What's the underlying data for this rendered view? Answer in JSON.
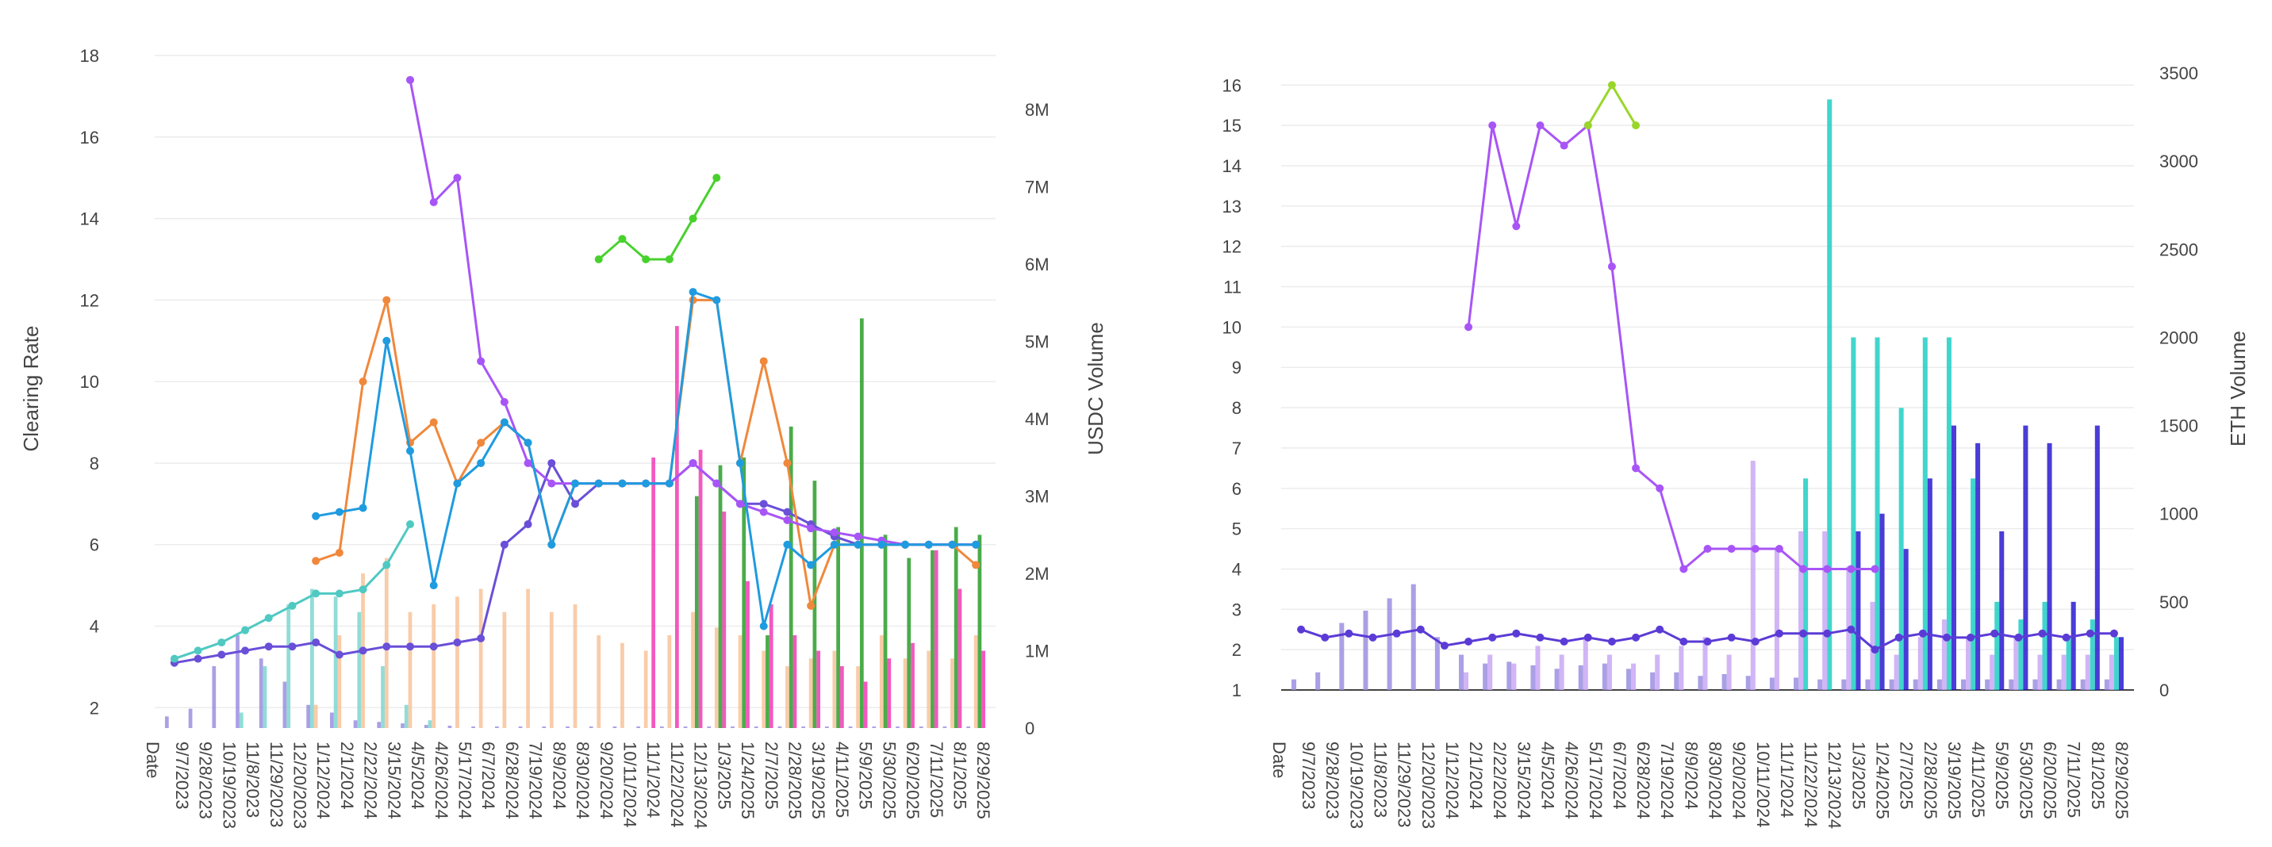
{
  "chart_data": [
    {
      "type": "bar+line",
      "left_axis_title": "Clearing Rate",
      "right_axis_title": "USDC Volume",
      "ylim": [
        1.5,
        18
      ],
      "y2lim": [
        0,
        8700000
      ],
      "yticks": [
        "2",
        "4",
        "6",
        "8",
        "10",
        "12",
        "14",
        "16",
        "18"
      ],
      "y2ticks": [
        "0",
        "1M",
        "2M",
        "3M",
        "4M",
        "5M",
        "6M",
        "7M",
        "8M"
      ],
      "x_first_label": "Date",
      "x_labels": [
        "9/7/2023",
        "9/28/2023",
        "10/19/2023",
        "11/8/2023",
        "11/29/2023",
        "12/20/2023",
        "1/12/2024",
        "2/1/2024",
        "2/22/2024",
        "3/15/2024",
        "4/5/2024",
        "4/26/2024",
        "5/17/2024",
        "6/7/2024",
        "6/28/2024",
        "7/19/2024",
        "8/9/2024",
        "8/30/2024",
        "9/20/2024",
        "10/11/2024",
        "11/1/2024",
        "11/22/2024",
        "12/13/2024",
        "1/3/2025",
        "1/24/2025",
        "2/7/2025",
        "2/28/2025",
        "3/19/2025",
        "4/11/2025",
        "5/9/2025",
        "5/30/2025",
        "6/20/2025",
        "7/11/2025",
        "8/1/2025",
        "8/29/2025"
      ],
      "series": [
        {
          "name": "rate-indigo",
          "color": "#6a4fd8",
          "values": [
            3.1,
            3.2,
            3.3,
            3.4,
            3.5,
            3.5,
            3.6,
            3.3,
            3.4,
            3.5,
            3.5,
            3.5,
            3.6,
            3.7,
            6.0,
            6.5,
            8.0,
            7.0,
            7.5,
            7.5,
            7.5,
            7.5,
            8.0,
            7.5,
            7.0,
            7.0,
            6.8,
            6.5,
            6.2,
            6.0,
            6.0,
            6.0,
            6.0,
            6.0,
            6.0
          ]
        },
        {
          "name": "rate-teal",
          "color": "#4fc9c2",
          "values": [
            3.2,
            3.4,
            3.6,
            3.9,
            4.2,
            4.5,
            4.8,
            4.8,
            4.9,
            5.5,
            6.5,
            null,
            null,
            null,
            null,
            null,
            null,
            null,
            null,
            null,
            null,
            null,
            null,
            null,
            null,
            null,
            null,
            null,
            null,
            null,
            null,
            null,
            null,
            null,
            null
          ]
        },
        {
          "name": "rate-orange",
          "color": "#f0883c",
          "values": [
            null,
            null,
            null,
            null,
            null,
            null,
            5.6,
            5.8,
            10.0,
            12.0,
            8.5,
            9.0,
            7.5,
            8.5,
            9.0,
            8.5,
            6.0,
            7.5,
            7.5,
            7.5,
            7.5,
            7.5,
            12.0,
            12.0,
            8.0,
            10.5,
            8.0,
            4.5,
            6.0,
            6.0,
            6.0,
            6.0,
            6.0,
            6.0,
            5.5
          ]
        },
        {
          "name": "rate-purple",
          "color": "#a855f7",
          "values": [
            null,
            null,
            null,
            null,
            null,
            null,
            null,
            null,
            null,
            null,
            17.4,
            14.4,
            15.0,
            10.5,
            9.5,
            8.0,
            7.5,
            7.5,
            7.5,
            7.5,
            7.5,
            7.5,
            8.0,
            7.5,
            7.0,
            6.8,
            6.6,
            6.4,
            6.3,
            6.2,
            6.1,
            6.0,
            6.0,
            6.0,
            6.0
          ]
        },
        {
          "name": "rate-blue",
          "color": "#1f9be0",
          "values": [
            null,
            null,
            null,
            null,
            null,
            null,
            6.7,
            6.8,
            6.9,
            11.0,
            8.3,
            5.0,
            7.5,
            8.0,
            9.0,
            8.5,
            6.0,
            7.5,
            7.5,
            7.5,
            7.5,
            7.5,
            12.2,
            12.0,
            8.0,
            4.0,
            6.0,
            5.5,
            6.0,
            6.0,
            6.0,
            6.0,
            6.0,
            6.0,
            6.0
          ]
        },
        {
          "name": "rate-green",
          "color": "#48d12d",
          "values": [
            null,
            null,
            null,
            null,
            null,
            null,
            null,
            null,
            null,
            null,
            null,
            null,
            null,
            null,
            null,
            null,
            null,
            null,
            13.0,
            13.5,
            13.0,
            13.0,
            14.0,
            15.0,
            null,
            null,
            null,
            null,
            null,
            null,
            null,
            null,
            null,
            null,
            null
          ]
        }
      ],
      "volume_bars": [
        {
          "color": "#9b8fe0",
          "values": [
            150000,
            250000,
            800000,
            1200000,
            900000,
            600000,
            300000,
            200000,
            100000,
            80000,
            60000,
            40000,
            30000,
            20000,
            20000,
            20000,
            20000,
            20000,
            20000,
            20000,
            20000,
            20000,
            20000,
            20000,
            20000,
            20000,
            20000,
            20000,
            20000,
            20000,
            20000,
            20000,
            20000,
            20000,
            20000
          ]
        },
        {
          "color": "#7ed6d0",
          "values": [
            0,
            0,
            0,
            200000,
            800000,
            1600000,
            1800000,
            1700000,
            1500000,
            800000,
            300000,
            100000,
            0,
            0,
            0,
            0,
            0,
            0,
            0,
            0,
            0,
            0,
            0,
            0,
            0,
            0,
            0,
            0,
            0,
            0,
            0,
            0,
            0,
            0,
            0
          ]
        },
        {
          "color": "#f8c39a",
          "values": [
            0,
            0,
            0,
            0,
            0,
            0,
            300000,
            1200000,
            2000000,
            2200000,
            1500000,
            1600000,
            1700000,
            1800000,
            1500000,
            1800000,
            1500000,
            1600000,
            1200000,
            1100000,
            1000000,
            1200000,
            1500000,
            1300000,
            1200000,
            1000000,
            800000,
            900000,
            1000000,
            800000,
            1200000,
            900000,
            1000000,
            900000,
            1200000
          ]
        },
        {
          "color": "#2a9d2a",
          "values": [
            0,
            0,
            0,
            0,
            0,
            0,
            0,
            0,
            0,
            0,
            0,
            0,
            0,
            0,
            0,
            0,
            0,
            0,
            0,
            0,
            0,
            0,
            3000000,
            3400000,
            3500000,
            1200000,
            3900000,
            3200000,
            2600000,
            5300000,
            2500000,
            2200000,
            2300000,
            2600000,
            2500000
          ]
        },
        {
          "color": "#f03cb4",
          "values": [
            0,
            0,
            0,
            0,
            0,
            0,
            0,
            0,
            0,
            0,
            0,
            0,
            0,
            0,
            0,
            0,
            0,
            0,
            0,
            0,
            3500000,
            5200000,
            3600000,
            2800000,
            1900000,
            1600000,
            1200000,
            1000000,
            800000,
            600000,
            900000,
            1100000,
            2300000,
            1800000,
            1000000
          ]
        }
      ]
    },
    {
      "type": "bar+line",
      "left_axis_title": "",
      "right_axis_title": "ETH Volume",
      "ylim": [
        1,
        16.3
      ],
      "y2lim": [
        0,
        3500
      ],
      "yticks": [
        "1",
        "2",
        "3",
        "4",
        "5",
        "6",
        "7",
        "8",
        "9",
        "10",
        "11",
        "12",
        "13",
        "14",
        "15",
        "16"
      ],
      "y2ticks": [
        "0",
        "500",
        "1000",
        "1500",
        "2000",
        "2500",
        "3000",
        "3500"
      ],
      "x_first_label": "Date",
      "x_labels": [
        "9/7/2023",
        "9/28/2023",
        "10/19/2023",
        "11/8/2023",
        "11/29/2023",
        "12/20/2023",
        "1/12/2024",
        "2/1/2024",
        "2/22/2024",
        "3/15/2024",
        "4/5/2024",
        "4/26/2024",
        "5/17/2024",
        "6/7/2024",
        "6/28/2024",
        "7/19/2024",
        "8/9/2024",
        "8/30/2024",
        "9/20/2024",
        "10/11/2024",
        "11/1/2024",
        "11/22/2024",
        "12/13/2024",
        "1/3/2025",
        "1/24/2025",
        "2/7/2025",
        "2/28/2025",
        "3/19/2025",
        "4/11/2025",
        "5/9/2025",
        "5/30/2025",
        "6/20/2025",
        "7/11/2025",
        "8/1/2025",
        "8/29/2025"
      ],
      "series": [
        {
          "name": "eth-rate-indigo",
          "color": "#5b3bd6",
          "values": [
            2.5,
            2.3,
            2.4,
            2.3,
            2.4,
            2.5,
            2.1,
            2.2,
            2.3,
            2.4,
            2.3,
            2.2,
            2.3,
            2.2,
            2.3,
            2.5,
            2.2,
            2.2,
            2.3,
            2.2,
            2.4,
            2.4,
            2.4,
            2.5,
            2.0,
            2.3,
            2.4,
            2.3,
            2.3,
            2.4,
            2.3,
            2.4,
            2.3,
            2.4,
            2.4
          ]
        },
        {
          "name": "eth-rate-purple",
          "color": "#a855f7",
          "values": [
            null,
            null,
            null,
            null,
            null,
            null,
            null,
            10.0,
            15.0,
            12.5,
            15.0,
            14.5,
            15.0,
            11.5,
            6.5,
            6.0,
            4.0,
            4.5,
            4.5,
            4.5,
            4.5,
            4.0,
            4.0,
            4.0,
            4.0,
            null,
            null,
            null,
            null,
            null,
            null,
            null,
            null,
            null,
            null
          ]
        },
        {
          "name": "eth-rate-lime",
          "color": "#9ad62a",
          "values": [
            null,
            null,
            null,
            null,
            null,
            null,
            null,
            null,
            null,
            null,
            null,
            null,
            15.0,
            16.0,
            15.0,
            null,
            null,
            null,
            null,
            null,
            null,
            null,
            null,
            null,
            null,
            null,
            null,
            null,
            null,
            null,
            null,
            null,
            null,
            null,
            null
          ]
        }
      ],
      "volume_bars": [
        {
          "color": "#9b8fe0",
          "values": [
            60,
            100,
            380,
            450,
            520,
            600,
            300,
            200,
            150,
            160,
            140,
            120,
            140,
            150,
            120,
            100,
            100,
            80,
            90,
            80,
            70,
            70,
            60,
            60,
            60,
            60,
            60,
            60,
            60,
            60,
            60,
            60,
            60,
            60,
            60
          ]
        },
        {
          "color": "#c9a8f5",
          "values": [
            0,
            0,
            0,
            0,
            0,
            0,
            0,
            100,
            200,
            150,
            250,
            200,
            300,
            200,
            150,
            200,
            250,
            300,
            200,
            1300,
            800,
            900,
            900,
            700,
            500,
            200,
            300,
            400,
            300,
            200,
            300,
            200,
            200,
            200,
            200
          ]
        },
        {
          "color": "#1fcfc4",
          "values": [
            0,
            0,
            0,
            0,
            0,
            0,
            0,
            0,
            0,
            0,
            0,
            0,
            0,
            0,
            0,
            0,
            0,
            0,
            0,
            0,
            0,
            1200,
            3350,
            2000,
            2000,
            1600,
            2000,
            2000,
            1200,
            500,
            400,
            500,
            300,
            400,
            300
          ]
        },
        {
          "color": "#2a1ad0",
          "values": [
            0,
            0,
            0,
            0,
            0,
            0,
            0,
            0,
            0,
            0,
            0,
            0,
            0,
            0,
            0,
            0,
            0,
            0,
            0,
            0,
            0,
            0,
            0,
            900,
            1000,
            800,
            1200,
            1500,
            1400,
            900,
            1500,
            1400,
            500,
            1500,
            300
          ]
        }
      ]
    }
  ]
}
